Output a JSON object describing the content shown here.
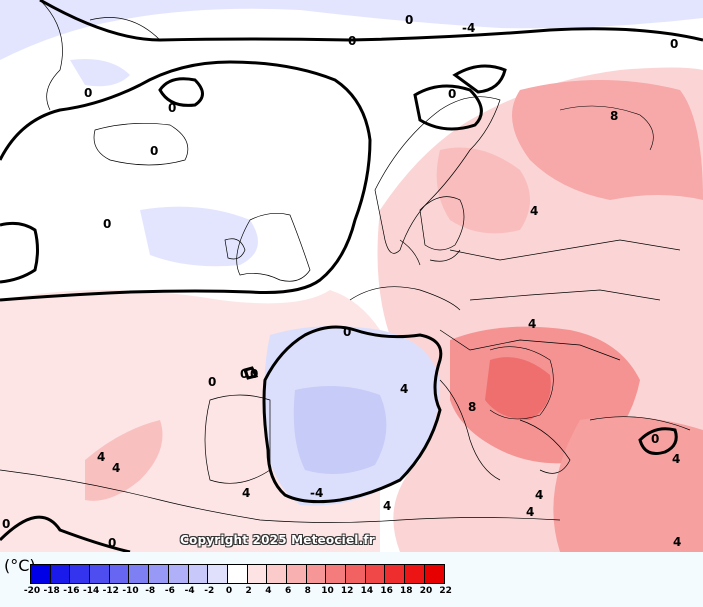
{
  "map": {
    "copyright": "Copyright 2025 Meteociel.fr",
    "contour_labels": [
      {
        "text": "0"
      },
      {
        "text": "-4"
      },
      {
        "text": "0"
      },
      {
        "text": "0"
      },
      {
        "text": "0"
      },
      {
        "text": "0"
      },
      {
        "text": "0"
      },
      {
        "text": "0"
      },
      {
        "text": "0"
      },
      {
        "text": "8"
      },
      {
        "text": "4"
      },
      {
        "text": "0"
      },
      {
        "text": "4"
      },
      {
        "text": "0"
      },
      {
        "text": "0"
      },
      {
        "text": "0"
      },
      {
        "text": "4"
      },
      {
        "text": "8"
      },
      {
        "text": "0"
      },
      {
        "text": "4"
      },
      {
        "text": "4"
      },
      {
        "text": "4"
      },
      {
        "text": "4"
      },
      {
        "text": "-4"
      },
      {
        "text": "4"
      },
      {
        "text": "4"
      },
      {
        "text": "4"
      },
      {
        "text": "0"
      },
      {
        "text": "0"
      },
      {
        "text": "4"
      }
    ],
    "field_colors": {
      "cold": "#dde0ff",
      "neutral": "#ffffff",
      "warm_light": "#fde3e3",
      "warm": "#f9b3b3",
      "warm_strong": "#f28585",
      "cold_strong": "#a8acf5"
    }
  },
  "legend": {
    "unit": "(°C)",
    "ticks": [
      "-20",
      "-18",
      "-16",
      "-14",
      "-12",
      "-10",
      "-8",
      "-6",
      "-4",
      "-2",
      "0",
      "2",
      "4",
      "6",
      "8",
      "10",
      "12",
      "14",
      "16",
      "18",
      "20",
      "22"
    ],
    "colors": [
      "#0000e6",
      "#1a1aeb",
      "#3434ee",
      "#4e4ef0",
      "#6666f2",
      "#7f7ff4",
      "#9898f6",
      "#b0b0f8",
      "#c8c8fa",
      "#e0e0fc",
      "#ffffff",
      "#fde3e3",
      "#fbcaca",
      "#f9b0b0",
      "#f79696",
      "#f47c7c",
      "#f26262",
      "#f04848",
      "#ee2e2e",
      "#ec1414",
      "#e60000"
    ]
  }
}
